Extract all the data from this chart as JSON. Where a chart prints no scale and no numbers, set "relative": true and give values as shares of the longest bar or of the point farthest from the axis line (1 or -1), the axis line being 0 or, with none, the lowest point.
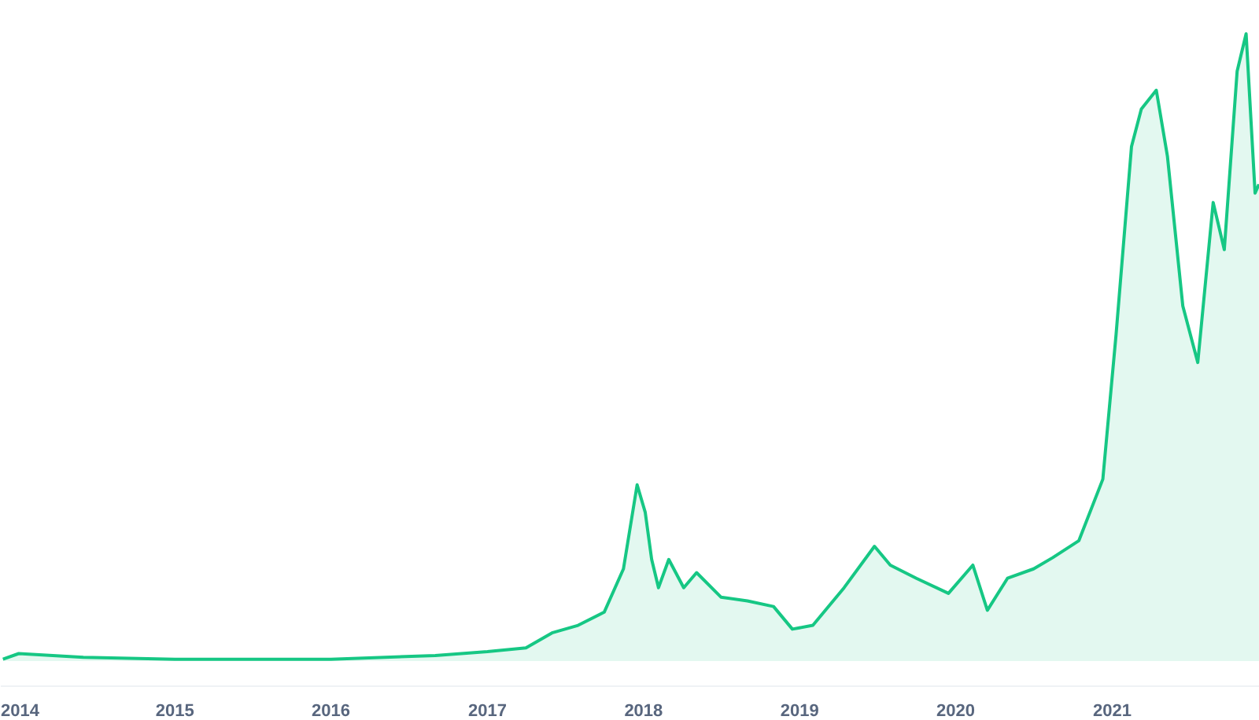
{
  "chart_data": {
    "type": "area",
    "relative": true,
    "color": "#16c784",
    "x": [
      "2013-11-25",
      "2014-01-01",
      "2014-06-01",
      "2015-01-01",
      "2016-01-01",
      "2016-09-01",
      "2017-01-01",
      "2017-04-01",
      "2017-06-01",
      "2017-08-01",
      "2017-10-01",
      "2017-11-15",
      "2017-12-17",
      "2018-01-05",
      "2018-01-20",
      "2018-02-05",
      "2018-03-01",
      "2018-04-05",
      "2018-05-05",
      "2018-07-01",
      "2018-09-01",
      "2018-11-01",
      "2018-12-15",
      "2019-02-01",
      "2019-04-15",
      "2019-06-25",
      "2019-08-01",
      "2019-10-01",
      "2019-12-15",
      "2020-02-10",
      "2020-03-15",
      "2020-05-01",
      "2020-07-01",
      "2020-08-15",
      "2020-10-15",
      "2020-12-10",
      "2021-01-10",
      "2021-02-15",
      "2021-03-10",
      "2021-04-14",
      "2021-05-10",
      "2021-06-15",
      "2021-07-20",
      "2021-08-25",
      "2021-09-20",
      "2021-10-20",
      "2021-11-10",
      "2021-12-01",
      "2021-12-10"
    ],
    "values": [
      0.003,
      0.012,
      0.006,
      0.003,
      0.003,
      0.009,
      0.015,
      0.021,
      0.045,
      0.057,
      0.078,
      0.147,
      0.281,
      0.237,
      0.162,
      0.117,
      0.162,
      0.117,
      0.141,
      0.102,
      0.096,
      0.087,
      0.051,
      0.057,
      0.117,
      0.183,
      0.153,
      0.132,
      0.108,
      0.153,
      0.081,
      0.132,
      0.147,
      0.165,
      0.192,
      0.29,
      0.521,
      0.82,
      0.88,
      0.91,
      0.805,
      0.566,
      0.476,
      0.731,
      0.656,
      0.94,
      1,
      0.746,
      0.76
    ],
    "xlim": [
      "2013-11-20",
      "2021-12-12"
    ],
    "xticks": [
      {
        "value": "2014-01-01",
        "label": "2014"
      },
      {
        "value": "2015-01-01",
        "label": "2015"
      },
      {
        "value": "2016-01-01",
        "label": "2016"
      },
      {
        "value": "2017-01-01",
        "label": "2017"
      },
      {
        "value": "2018-01-01",
        "label": "2018"
      },
      {
        "value": "2019-01-01",
        "label": "2019"
      },
      {
        "value": "2020-01-01",
        "label": "2020"
      },
      {
        "value": "2021-01-01",
        "label": "2021"
      }
    ],
    "line_style": "solid",
    "grid": false
  }
}
